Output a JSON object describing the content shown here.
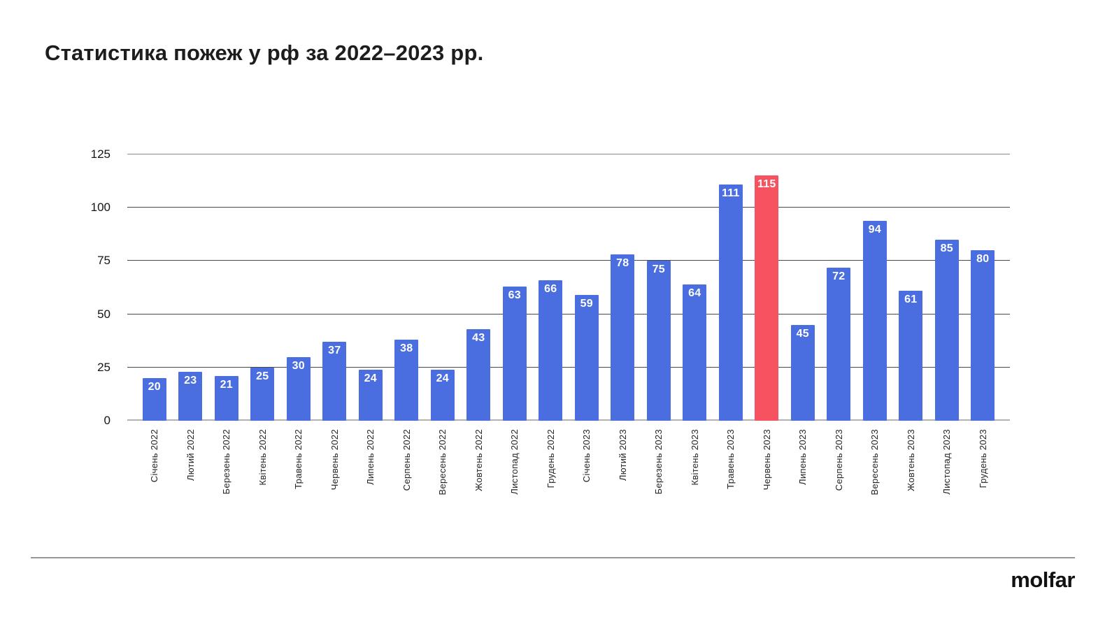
{
  "title": "Статистика пожеж у рф за 2022–2023 рр.",
  "footer": {
    "logo_text": "molfar"
  },
  "colors": {
    "bar": "#4A6EE0",
    "highlight": "#F7525F",
    "value_label": "#FFFFFF",
    "gridline": "#46474B",
    "baseline": "#B2B2B6",
    "title_text": "#1D1D1F"
  },
  "chart_data": {
    "type": "bar",
    "title": "Статистика пожеж у рф за 2022–2023 рр.",
    "categories": [
      "Січень 2022",
      "Лютий 2022",
      "Березень 2022",
      "Квітень 2022",
      "Травень 2022",
      "Червень 2022",
      "Липень 2022",
      "Серпень 2022",
      "Вересень 2022",
      "Жовтень 2022",
      "Листопад 2022",
      "Грудень 2022",
      "Січень 2023",
      "Лютий 2023",
      "Березень 2023",
      "Квітень 2023",
      "Травень 2023",
      "Червень 2023",
      "Липень 2023",
      "Серпень 2023",
      "Вересень 2023",
      "Жовтень 2023",
      "Листопад 2023",
      "Грудень 2023"
    ],
    "values": [
      20,
      23,
      21,
      25,
      30,
      37,
      24,
      38,
      24,
      43,
      63,
      66,
      59,
      78,
      75,
      64,
      111,
      115,
      45,
      72,
      94,
      61,
      85,
      80
    ],
    "highlighted_index": 17,
    "highlighted_category": "Червень 2023",
    "highlighted_value": 115,
    "xlabel": "",
    "ylabel": "",
    "yticks": [
      0,
      25,
      50,
      75,
      100,
      125
    ],
    "ylim": [
      0,
      125
    ],
    "grid": true,
    "legend": false,
    "value_labels_position": "inside-top"
  }
}
